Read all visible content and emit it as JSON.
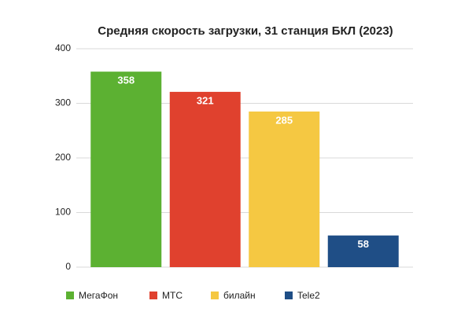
{
  "chart_data": {
    "type": "bar",
    "title": "Средняя скорость загрузки, 31 станция БКЛ (2023)",
    "categories": [
      "МегаФон",
      "МТС",
      "билайн",
      "Tele2"
    ],
    "values": [
      358,
      321,
      285,
      58
    ],
    "colors": [
      "#5cb132",
      "#e0412e",
      "#f5c842",
      "#1f4e86"
    ],
    "ylim": [
      0,
      400
    ],
    "yticks": [
      0,
      100,
      200,
      300,
      400
    ],
    "grid": true,
    "legend": "bottom"
  }
}
